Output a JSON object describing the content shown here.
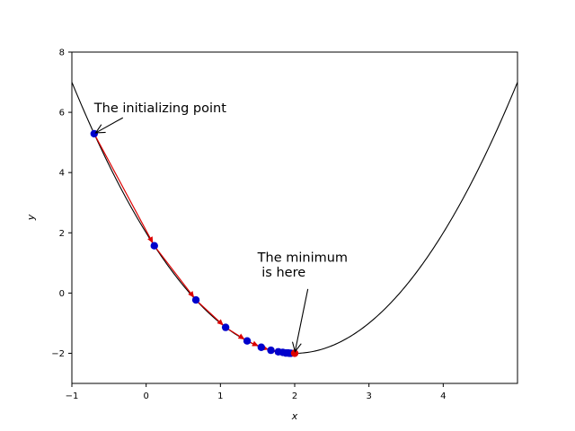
{
  "chart_data": {
    "type": "line",
    "title": "",
    "xlabel": "x",
    "ylabel": "y",
    "xlim": [
      -1,
      5
    ],
    "ylim": [
      -3,
      8
    ],
    "xticks": [
      -1,
      0,
      1,
      2,
      3,
      4
    ],
    "yticks": [
      -2,
      0,
      2,
      4,
      6,
      8
    ],
    "grid": false,
    "series": [
      {
        "kind": "curve",
        "function": "y = (x - 2)^2 - 2",
        "color": "#000000",
        "x_range": [
          -1,
          5
        ]
      },
      {
        "kind": "scatter",
        "color": "#0000cc",
        "x": [
          -0.7,
          0.11,
          0.67,
          1.07,
          1.36,
          1.55,
          1.68,
          1.78,
          1.84,
          1.88,
          1.91,
          1.93,
          1.95
        ],
        "y": [
          5.29,
          1.57,
          -0.23,
          -1.14,
          -1.59,
          -1.8,
          -1.9,
          -1.95,
          -1.97,
          -1.99,
          -1.99,
          -2.0,
          -2.0
        ]
      },
      {
        "kind": "arrows",
        "color": "#dd0000",
        "description_of_steps": "gradient descent steps connecting consecutive points"
      },
      {
        "kind": "point",
        "color": "#dd0000",
        "x": [
          2.0
        ],
        "y": [
          -2.0
        ]
      }
    ],
    "annotations": [
      {
        "text_lines": [
          "The initializing point"
        ],
        "target_x": -0.7,
        "target_y": 5.29,
        "text_x": -0.7,
        "text_y": 6.0
      },
      {
        "text_lines": [
          "The minimum",
          " is here"
        ],
        "target_x": 2.0,
        "target_y": -2.0,
        "text_x": 1.5,
        "text_y": 0.55
      }
    ]
  }
}
